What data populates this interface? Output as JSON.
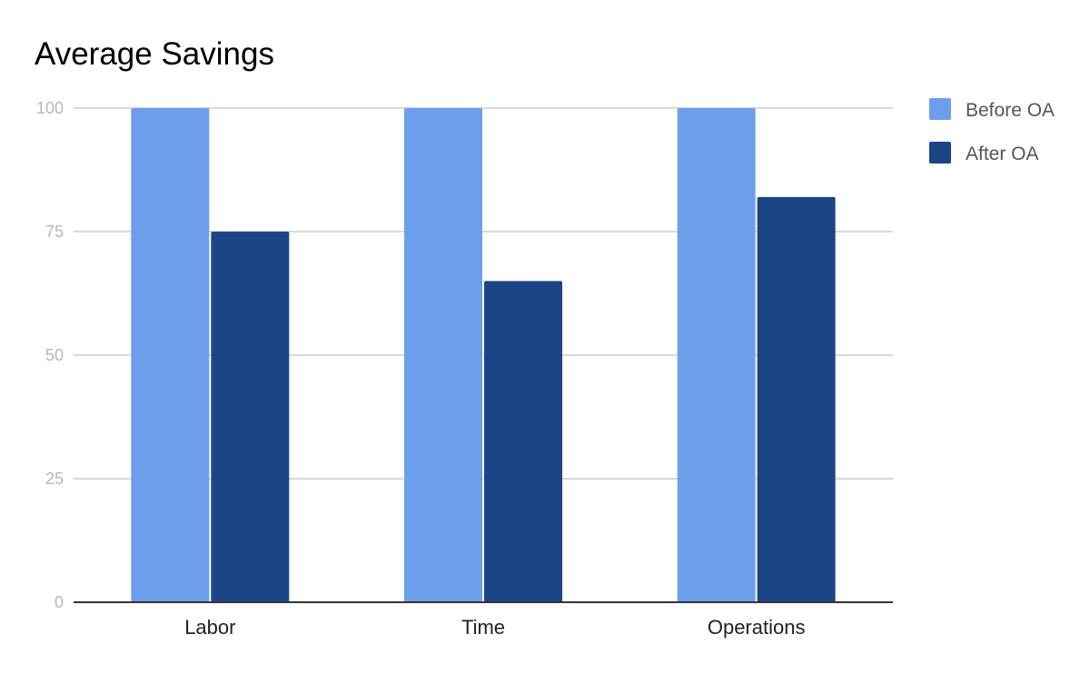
{
  "chart_data": {
    "type": "bar",
    "title": "Average Savings",
    "xlabel": "",
    "ylabel": "",
    "categories": [
      "Labor",
      "Time",
      "Operations"
    ],
    "series": [
      {
        "name": "Before OA",
        "color": "#6d9eeb",
        "values": [
          100,
          100,
          100
        ]
      },
      {
        "name": "After OA",
        "color": "#1c4587",
        "values": [
          75,
          65,
          82
        ]
      }
    ],
    "ylim": [
      0,
      100
    ],
    "yticks": [
      0,
      25,
      50,
      75,
      100
    ],
    "grid": true,
    "legend_position": "right"
  }
}
